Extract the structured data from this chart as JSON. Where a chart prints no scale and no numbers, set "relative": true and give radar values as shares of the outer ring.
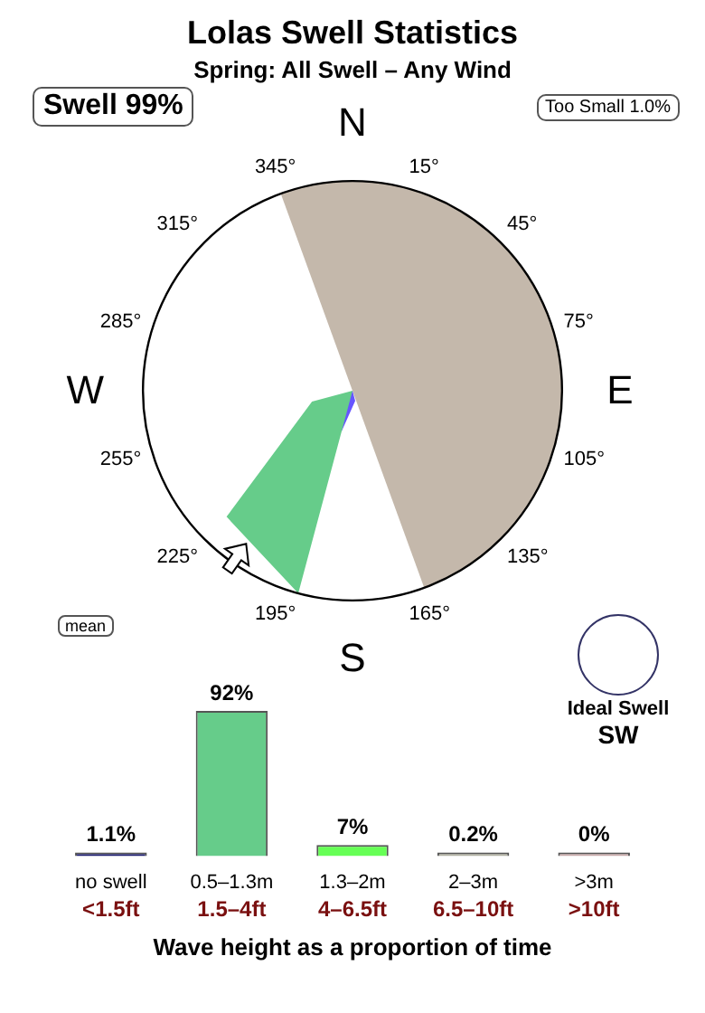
{
  "chart_data": [
    {
      "type": "radar",
      "title": "Lolas Swell Statistics",
      "subtitle": "Spring: All Swell – Any Wind",
      "relative": true,
      "categories": [
        "15°",
        "45°",
        "75°",
        "105°",
        "135°",
        "165°",
        "195°",
        "225°",
        "255°",
        "285°",
        "315°",
        "345°"
      ],
      "series": [
        {
          "color": "#66cc8a",
          "values": [
            0,
            0,
            0,
            0,
            0,
            0,
            1,
            0.85,
            0.2,
            0,
            0,
            0
          ]
        },
        {
          "color": "#6655ff",
          "values": [
            0,
            0,
            0,
            0,
            0,
            0.05,
            0.2,
            0.15,
            0,
            0,
            0,
            0
          ]
        }
      ],
      "annotations": [
        "N",
        "E",
        "S",
        "W",
        "Swell 99%",
        "Too Small 1.0%",
        "mean",
        "Ideal Swell",
        "SW"
      ]
    },
    {
      "type": "bar",
      "categories": [
        "no swell",
        "0.5–1.3m",
        "1.3–2m",
        "2–3m",
        ">3m"
      ],
      "values": [
        1.1,
        92,
        7,
        0.2,
        0
      ],
      "colors": [
        "#1a1a6e",
        "#66cc8a",
        "#66ff55",
        "#b0b0a0",
        "#c8a8a8"
      ],
      "value_labels": [
        "1.1%",
        "92%",
        "7%",
        "0.2%",
        "0%"
      ],
      "xlabel": "Wave height as a proportion of time",
      "annotations": [
        "<1.5ft",
        "1.5–4ft",
        "4–6.5ft",
        "6.5–10ft",
        ">10ft"
      ]
    }
  ]
}
